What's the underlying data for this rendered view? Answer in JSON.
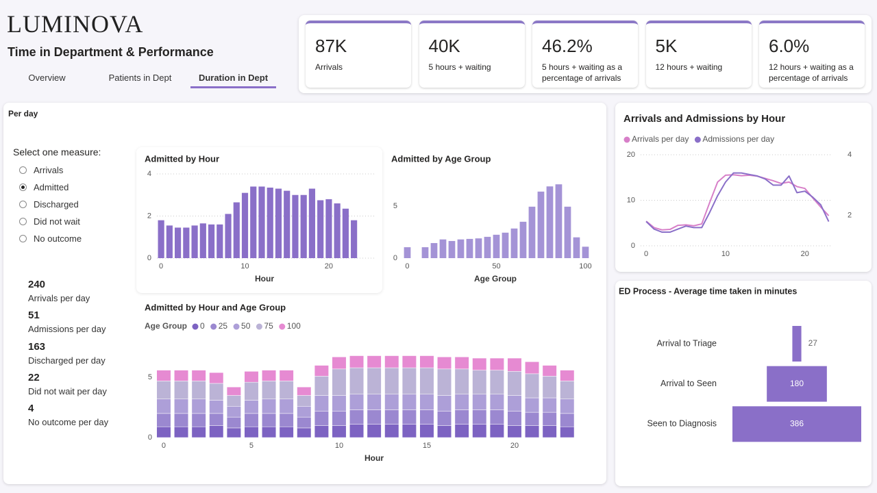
{
  "header": {
    "logo": "LUMINOVA",
    "title": "Time in Department & Performance",
    "tabs": [
      "Overview",
      "Patients in Dept",
      "Duration in Dept"
    ],
    "active_tab": 2
  },
  "kpis": [
    {
      "value": "87K",
      "label": "Arrivals"
    },
    {
      "value": "40K",
      "label": "5 hours + waiting"
    },
    {
      "value": "46.2%",
      "label": "5 hours + waiting as a percentage of arrivals"
    },
    {
      "value": "5K",
      "label": "12 hours + waiting"
    },
    {
      "value": "6.0%",
      "label": "12 hours + waiting as a percentage of arrivals"
    }
  ],
  "panel_title": "Per day",
  "measure": {
    "title": "Select one measure:",
    "options": [
      "Arrivals",
      "Admitted",
      "Discharged",
      "Did not wait",
      "No outcome"
    ],
    "selected": 1
  },
  "stats": [
    {
      "value": 240,
      "label": "Arrivals per day"
    },
    {
      "value": 51,
      "label": "Admissions per day"
    },
    {
      "value": 163,
      "label": "Discharged per day"
    },
    {
      "value": 22,
      "label": "Did not wait per day"
    },
    {
      "value": 4,
      "label": "No outcome per day"
    }
  ],
  "chart_data": [
    {
      "type": "bar",
      "title": "Admitted by Hour",
      "x_label": "Hour",
      "x": [
        0,
        1,
        2,
        3,
        4,
        5,
        6,
        7,
        8,
        9,
        10,
        11,
        12,
        13,
        14,
        15,
        16,
        17,
        18,
        19,
        20,
        21,
        22,
        23
      ],
      "values": [
        1.8,
        1.55,
        1.45,
        1.45,
        1.55,
        1.65,
        1.6,
        1.6,
        2.1,
        2.65,
        3.1,
        3.4,
        3.4,
        3.35,
        3.3,
        3.2,
        3.0,
        3.0,
        3.3,
        2.75,
        2.8,
        2.6,
        2.35,
        1.8
      ],
      "color": "#8a6fc8",
      "xlim": [
        -0.5,
        25.4
      ],
      "xticks": [
        0,
        10,
        20
      ],
      "ylim": [
        0,
        4
      ],
      "yticks": [
        0,
        2,
        4
      ],
      "grid": true
    },
    {
      "type": "bar",
      "title": "Admitted by Age Group",
      "x_label": "Age Group",
      "x": [
        0,
        10,
        15,
        20,
        25,
        30,
        35,
        40,
        45,
        50,
        55,
        60,
        65,
        70,
        75,
        80,
        85,
        90,
        95,
        100
      ],
      "values": [
        1.05,
        1.05,
        1.45,
        1.8,
        1.65,
        1.8,
        1.85,
        1.9,
        2.05,
        2.25,
        2.45,
        2.85,
        3.5,
        4.95,
        6.4,
        6.9,
        7.1,
        4.95,
        2.0,
        1.1
      ],
      "color": "#a493d6",
      "xlim": [
        -2.5,
        102.9
      ],
      "xticks": [
        0,
        50,
        100
      ],
      "ylim": [
        0,
        8.1
      ],
      "yticks": [
        0,
        5
      ],
      "grid": false
    },
    {
      "type": "stacked_bar",
      "title": "Admitted by Hour and Age Group",
      "x_label": "Hour",
      "legend_title": "Age Group",
      "x": [
        0,
        1,
        2,
        3,
        4,
        5,
        6,
        7,
        8,
        9,
        10,
        11,
        12,
        13,
        14,
        15,
        16,
        17,
        18,
        19,
        20,
        21,
        22,
        23
      ],
      "series": [
        {
          "name": "0",
          "color": "#7d63c2",
          "values": [
            0.9,
            0.9,
            0.9,
            1.0,
            0.8,
            0.9,
            0.9,
            0.9,
            0.8,
            1.0,
            1.0,
            1.1,
            1.1,
            1.1,
            1.1,
            1.1,
            1.0,
            1.1,
            1.1,
            1.1,
            1.0,
            1.0,
            1.0,
            0.9
          ]
        },
        {
          "name": "25",
          "color": "#9b88d0",
          "values": [
            1.1,
            1.1,
            1.1,
            1.0,
            0.9,
            1.1,
            1.1,
            1.1,
            0.9,
            1.2,
            1.2,
            1.2,
            1.2,
            1.2,
            1.2,
            1.2,
            1.2,
            1.2,
            1.2,
            1.2,
            1.2,
            1.1,
            1.1,
            1.1
          ]
        },
        {
          "name": "50",
          "color": "#ad9fd8",
          "values": [
            1.2,
            1.2,
            1.2,
            1.1,
            0.9,
            1.1,
            1.2,
            1.2,
            0.9,
            1.3,
            1.3,
            1.3,
            1.3,
            1.3,
            1.3,
            1.3,
            1.3,
            1.3,
            1.3,
            1.3,
            1.3,
            1.2,
            1.2,
            1.2
          ]
        },
        {
          "name": "75",
          "color": "#bbb3d6",
          "values": [
            1.5,
            1.5,
            1.5,
            1.4,
            0.9,
            1.5,
            1.5,
            1.5,
            0.9,
            1.6,
            2.2,
            2.2,
            2.2,
            2.2,
            2.2,
            2.2,
            2.2,
            2.1,
            2.0,
            2.0,
            2.0,
            2.0,
            1.8,
            1.5
          ]
        },
        {
          "name": "100",
          "color": "#e68ad2",
          "values": [
            0.9,
            0.9,
            0.9,
            0.9,
            0.7,
            0.9,
            0.9,
            0.9,
            0.7,
            0.9,
            1.0,
            1.0,
            1.0,
            1.0,
            1.0,
            1.0,
            1.0,
            1.0,
            1.0,
            1.0,
            1.1,
            1.0,
            0.9,
            0.9
          ]
        }
      ],
      "xlim": [
        -0.35,
        23.4
      ],
      "xticks": [
        0,
        5,
        10,
        15,
        20
      ],
      "ylim": [
        0,
        7
      ],
      "yticks": [
        0,
        5
      ],
      "grid": false
    },
    {
      "type": "line",
      "title": "Arrivals and Admissions by Hour",
      "x": [
        0,
        1,
        2,
        3,
        4,
        5,
        6,
        7,
        8,
        9,
        10,
        11,
        12,
        13,
        14,
        15,
        16,
        17,
        18,
        19,
        20,
        21,
        22,
        23
      ],
      "series": [
        {
          "name": "Arrivals per day",
          "color": "#d77fc8",
          "values": [
            5.4,
            4.0,
            3.5,
            3.6,
            4.5,
            4.6,
            4.4,
            4.8,
            9.5,
            14.0,
            15.5,
            15.6,
            15.4,
            15.5,
            15.3,
            14.8,
            14.3,
            13.7,
            14.0,
            13.0,
            12.6,
            10.5,
            8.5,
            6.6
          ]
        },
        {
          "name": "Admissions per day",
          "color": "#8a6fc8",
          "axis": "y2",
          "values": [
            1.8,
            1.55,
            1.45,
            1.45,
            1.55,
            1.65,
            1.6,
            1.6,
            2.1,
            2.65,
            3.1,
            3.4,
            3.4,
            3.35,
            3.3,
            3.2,
            3.0,
            3.0,
            3.3,
            2.75,
            2.8,
            2.6,
            2.35,
            1.8
          ]
        }
      ],
      "xlim": [
        -0.7,
        23.3
      ],
      "xticks": [
        0,
        10,
        20
      ],
      "ylim": [
        0,
        20
      ],
      "yticks": [
        0,
        10,
        20
      ],
      "y2lim": [
        1,
        4
      ],
      "y2ticks": [
        2,
        4
      ],
      "grid": true
    },
    {
      "type": "funnel",
      "title": "ED Process - Average time taken in minutes",
      "categories": [
        "Arrival to Triage",
        "Arrival to Seen",
        "Seen to Diagnosis"
      ],
      "values": [
        27,
        180,
        386
      ],
      "color": "#8a6fc8"
    }
  ]
}
